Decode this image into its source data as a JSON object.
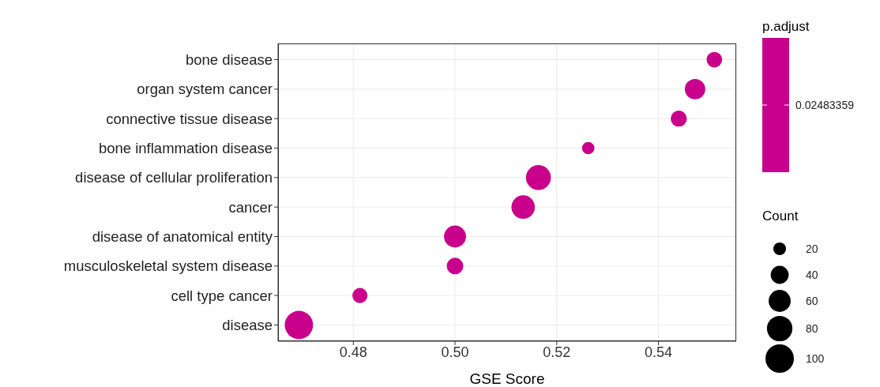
{
  "chart_data": {
    "type": "bubble",
    "xlabel": "GSE Score",
    "clabel": "p.adjust",
    "legend_title": "Count",
    "categories": [
      "bone disease",
      "organ system cancer",
      "connective tissue disease",
      "bone inflammation disease",
      "disease of cellular proliferation",
      "cancer",
      "disease of anatomical entity",
      "musculoskeletal system disease",
      "cell type cancer",
      "disease"
    ],
    "series": [
      {
        "color": "#c8008c",
        "values": [
          0.551,
          0.5472,
          0.544,
          0.5262,
          0.5164,
          0.5134,
          0.5,
          0.5,
          0.4813,
          0.4693
        ],
        "sizes": [
          30,
          52,
          32,
          19,
          77,
          68,
          60,
          34,
          28,
          99
        ]
      }
    ],
    "orientation": "horizontal",
    "xlim": [
      0.4652,
      0.5553
    ],
    "xticks": [
      0.48,
      {
        "value": 0.5,
        "label": "0.50"
      },
      0.52,
      0.54
    ],
    "annotations": [
      "0.02483359"
    ],
    "size_legend": [
      20,
      40,
      60,
      80,
      100
    ],
    "grid": true
  }
}
